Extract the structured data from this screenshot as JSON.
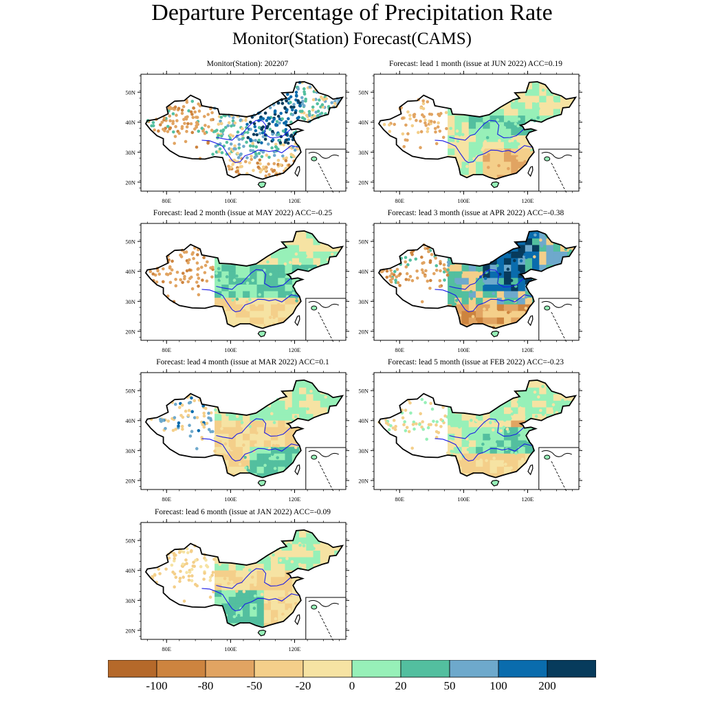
{
  "title": "Departure Percentage of Precipitation Rate",
  "subtitle": "Monitor(Station)   Forecast(CAMS)",
  "axes": {
    "lat_ticks": [
      "20N",
      "30N",
      "40N",
      "50N"
    ],
    "lon_ticks": [
      "80E",
      "100E",
      "120E"
    ],
    "lat_values": [
      20,
      30,
      40,
      50
    ],
    "lon_values": [
      80,
      100,
      120
    ],
    "lat_range": [
      17,
      56
    ],
    "lon_range": [
      72,
      136
    ]
  },
  "panels": [
    {
      "title": "Monitor(Station): 202207",
      "kind": "station",
      "dominant": "wet-north"
    },
    {
      "title": "Forecast: lead 1 month (issue at JUN 2022) ACC=0.19",
      "kind": "forecast",
      "dominant": "dry-south"
    },
    {
      "title": "Forecast: lead 2 month (issue at MAY 2022) ACC=-0.25",
      "kind": "forecast",
      "dominant": "mixed"
    },
    {
      "title": "Forecast: lead 3 month (issue at APR 2022) ACC=-0.38",
      "kind": "forecast",
      "dominant": "wet-north"
    },
    {
      "title": "Forecast: lead 4 month (issue at MAR 2022) ACC=0.1",
      "kind": "forecast",
      "dominant": "wet-south"
    },
    {
      "title": "Forecast: lead 5 month (issue at FEB 2022) ACC=-0.23",
      "kind": "forecast",
      "dominant": "wet-center"
    },
    {
      "title": "Forecast: lead 6 month (issue at JAN 2022) ACC=-0.09",
      "kind": "forecast",
      "dominant": "wet-west"
    }
  ],
  "colorbar": {
    "colors": [
      "#b5692a",
      "#cd843f",
      "#e1a462",
      "#f4cf8a",
      "#f6e3a3",
      "#97f0b8",
      "#53bf9f",
      "#6ea9cc",
      "#0a6cad",
      "#073b5c"
    ],
    "labels": [
      "-100",
      "-80",
      "-50",
      "-20",
      "0",
      "20",
      "50",
      "100",
      "200"
    ]
  }
}
